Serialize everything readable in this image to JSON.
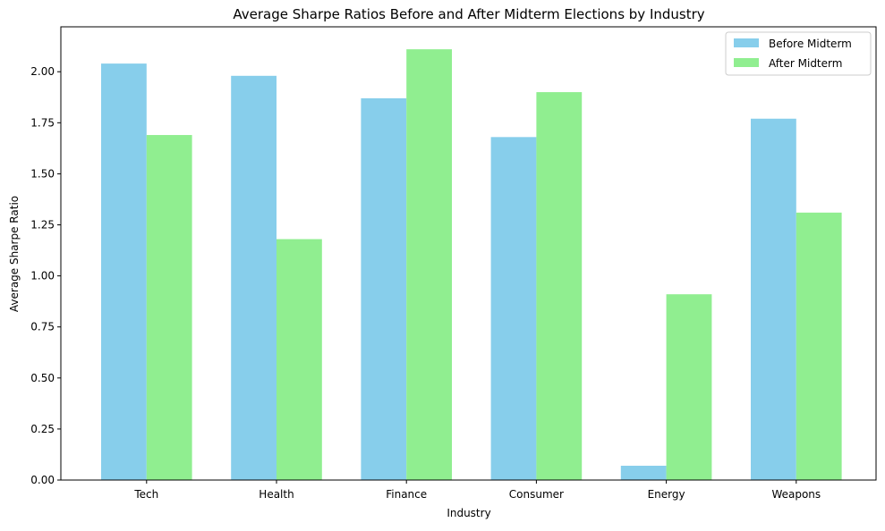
{
  "chart_data": {
    "type": "bar",
    "title": "Average Sharpe Ratios Before and After Midterm Elections by Industry",
    "xlabel": "Industry",
    "ylabel": "Average Sharpe Ratio",
    "categories": [
      "Tech",
      "Health",
      "Finance",
      "Consumer",
      "Energy",
      "Weapons"
    ],
    "series": [
      {
        "name": "Before Midterm",
        "color": "#87ceeb",
        "values": [
          2.04,
          1.98,
          1.87,
          1.68,
          0.07,
          1.77
        ]
      },
      {
        "name": "After Midterm",
        "color": "#90ee90",
        "values": [
          1.69,
          1.18,
          2.11,
          1.9,
          0.91,
          1.31
        ]
      }
    ],
    "ylim": [
      0,
      2.22
    ],
    "yticks": [
      0.0,
      0.25,
      0.5,
      0.75,
      1.0,
      1.25,
      1.5,
      1.75,
      2.0
    ],
    "ytick_labels": [
      "0.00",
      "0.25",
      "0.50",
      "0.75",
      "1.00",
      "1.25",
      "1.50",
      "1.75",
      "2.00"
    ],
    "grid": false,
    "legend_position": "top-right"
  }
}
